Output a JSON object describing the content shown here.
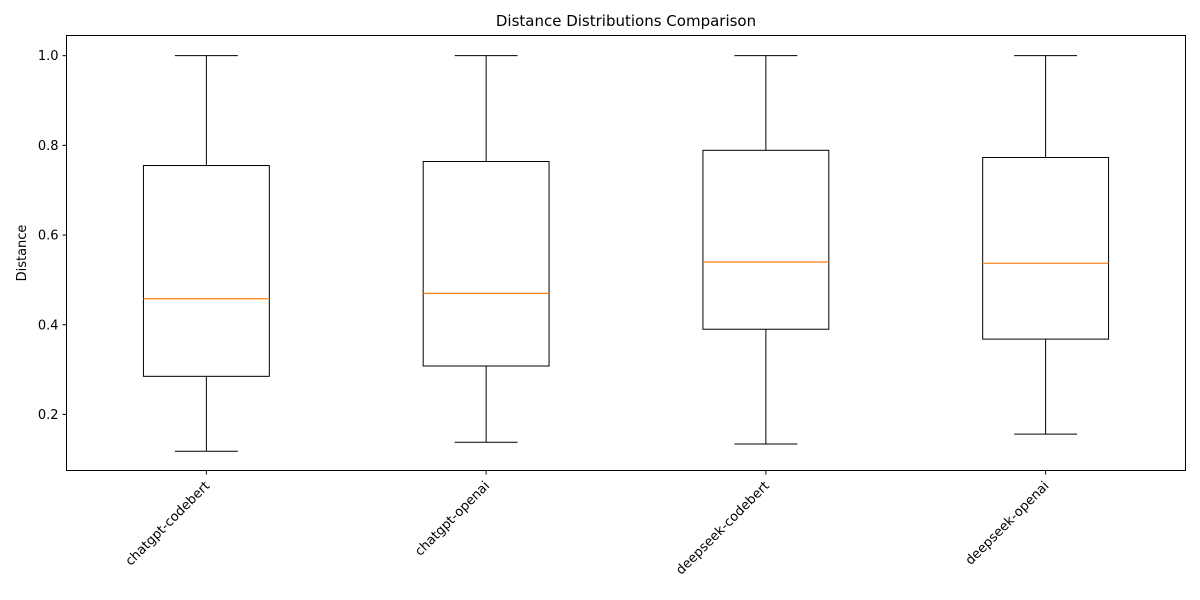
{
  "chart_data": {
    "type": "box",
    "title": "Distance Distributions Comparison",
    "xlabel": "",
    "ylabel": "Distance",
    "ylim": [
      0.075,
      1.045
    ],
    "yticks": [
      0.2,
      0.4,
      0.6,
      0.8,
      1.0
    ],
    "ytick_labels": [
      "0.2",
      "0.4",
      "0.6",
      "0.8",
      "1.0"
    ],
    "grid": false,
    "colors": {
      "box": "#000000",
      "median": "#ff7f0e"
    },
    "categories": [
      "chatgpt-codebert",
      "chatgpt-openai",
      "deepseek-codebert",
      "deepseek-openai"
    ],
    "boxes": [
      {
        "whisker_low": 0.118,
        "q1": 0.285,
        "median": 0.458,
        "q3": 0.755,
        "whisker_high": 1.0
      },
      {
        "whisker_low": 0.138,
        "q1": 0.308,
        "median": 0.47,
        "q3": 0.764,
        "whisker_high": 1.0
      },
      {
        "whisker_low": 0.134,
        "q1": 0.39,
        "median": 0.54,
        "q3": 0.789,
        "whisker_high": 1.0
      },
      {
        "whisker_low": 0.156,
        "q1": 0.368,
        "median": 0.537,
        "q3": 0.773,
        "whisker_high": 1.0
      }
    ]
  }
}
